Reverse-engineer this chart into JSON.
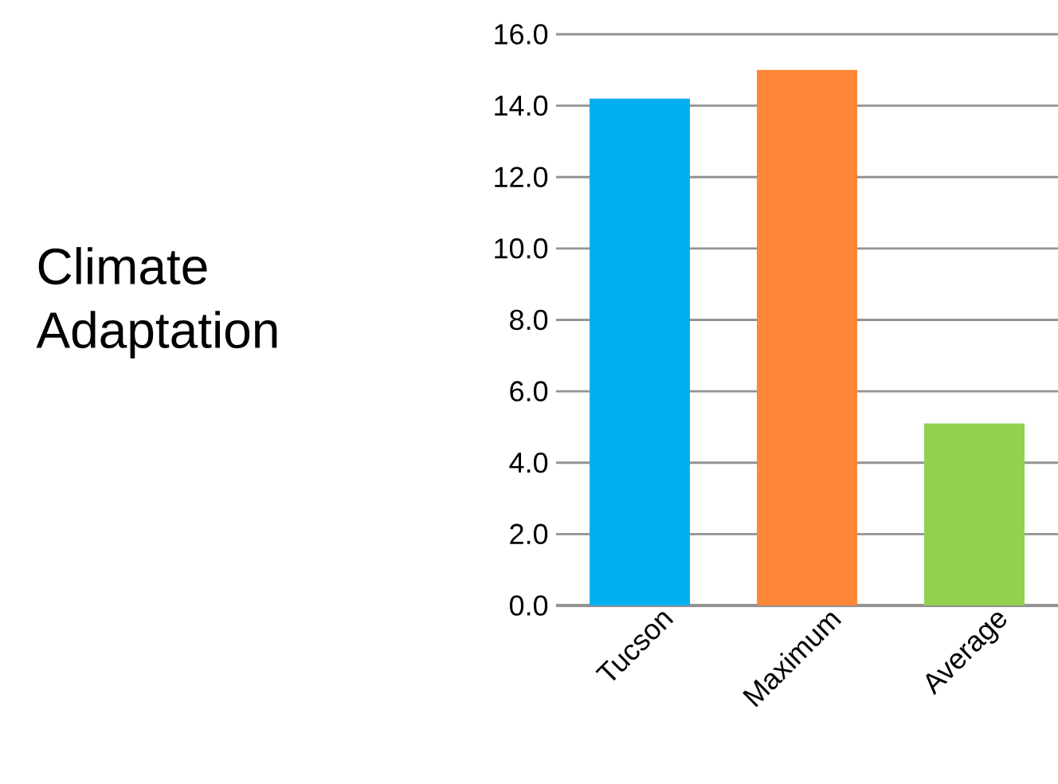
{
  "chart_data": {
    "type": "bar",
    "title": "Climate Adaptation",
    "categories": [
      "Tucson",
      "Maximum",
      "Average"
    ],
    "values": [
      14.2,
      15.0,
      5.1
    ],
    "colors": [
      "#00b0f0",
      "#fe8637",
      "#92d050"
    ],
    "ylim": [
      0,
      16
    ],
    "yticks": [
      {
        "value": 0,
        "label": "0.0"
      },
      {
        "value": 2,
        "label": "2.0"
      },
      {
        "value": 4,
        "label": "4.0"
      },
      {
        "value": 6,
        "label": "6.0"
      },
      {
        "value": 8,
        "label": "8.0"
      },
      {
        "value": 10,
        "label": "10.0"
      },
      {
        "value": 12,
        "label": "12.0"
      },
      {
        "value": 14,
        "label": "14.0"
      },
      {
        "value": 16,
        "label": "16.0"
      }
    ],
    "grid": "y"
  }
}
